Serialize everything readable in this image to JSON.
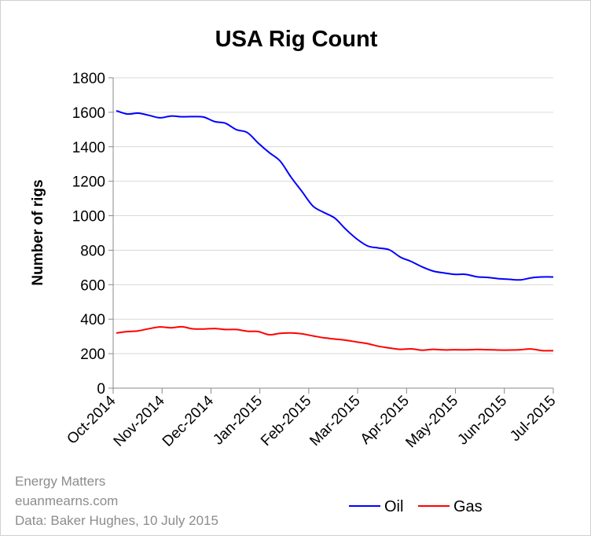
{
  "chart_data": {
    "type": "line",
    "title": "USA Rig Count",
    "xlabel": "",
    "ylabel": "Number of rigs",
    "ylim": [
      0,
      1800
    ],
    "yticks": [
      0,
      200,
      400,
      600,
      800,
      1000,
      1200,
      1400,
      1600,
      1800
    ],
    "xticks": [
      "Oct-2014",
      "Nov-2014",
      "Dec-2014",
      "Jan-2015",
      "Feb-2015",
      "Mar-2015",
      "Apr-2015",
      "May-2015",
      "Jun-2015",
      "Jul-2015"
    ],
    "grid": "horizontal",
    "legend": "bottom-right",
    "series": [
      {
        "name": "Oil",
        "color": "#0000ff",
        "x": [
          "2014-10-03",
          "2014-10-10",
          "2014-10-17",
          "2014-10-24",
          "2014-10-31",
          "2014-11-07",
          "2014-11-14",
          "2014-11-21",
          "2014-11-28",
          "2014-12-05",
          "2014-12-12",
          "2014-12-19",
          "2014-12-26",
          "2015-01-02",
          "2015-01-09",
          "2015-01-16",
          "2015-01-23",
          "2015-01-30",
          "2015-02-06",
          "2015-02-13",
          "2015-02-20",
          "2015-02-27",
          "2015-03-06",
          "2015-03-13",
          "2015-03-20",
          "2015-03-27",
          "2015-04-03",
          "2015-04-10",
          "2015-04-17",
          "2015-04-24",
          "2015-05-01",
          "2015-05-08",
          "2015-05-15",
          "2015-05-22",
          "2015-05-29",
          "2015-06-05",
          "2015-06-12",
          "2015-06-19",
          "2015-06-26",
          "2015-07-03",
          "2015-07-10"
        ],
        "values": [
          1609,
          1590,
          1595,
          1582,
          1568,
          1578,
          1574,
          1575,
          1572,
          1546,
          1536,
          1499,
          1482,
          1421,
          1366,
          1317,
          1223,
          1140,
          1056,
          1019,
          986,
          922,
          866,
          825,
          813,
          802,
          760,
          734,
          703,
          679,
          668,
          660,
          660,
          646,
          642,
          635,
          631,
          628,
          640,
          645,
          645
        ]
      },
      {
        "name": "Gas",
        "color": "#ff0000",
        "x": [
          "2014-10-03",
          "2014-10-10",
          "2014-10-17",
          "2014-10-24",
          "2014-10-31",
          "2014-11-07",
          "2014-11-14",
          "2014-11-21",
          "2014-11-28",
          "2014-12-05",
          "2014-12-12",
          "2014-12-19",
          "2014-12-26",
          "2015-01-02",
          "2015-01-09",
          "2015-01-16",
          "2015-01-23",
          "2015-01-30",
          "2015-02-06",
          "2015-02-13",
          "2015-02-20",
          "2015-02-27",
          "2015-03-06",
          "2015-03-13",
          "2015-03-20",
          "2015-03-27",
          "2015-04-03",
          "2015-04-10",
          "2015-04-17",
          "2015-04-24",
          "2015-05-01",
          "2015-05-08",
          "2015-05-15",
          "2015-05-22",
          "2015-05-29",
          "2015-06-05",
          "2015-06-12",
          "2015-06-19",
          "2015-06-26",
          "2015-07-03",
          "2015-07-10"
        ],
        "values": [
          320,
          328,
          332,
          345,
          355,
          350,
          356,
          344,
          343,
          346,
          340,
          340,
          330,
          328,
          310,
          318,
          320,
          315,
          303,
          292,
          285,
          278,
          268,
          258,
          243,
          233,
          225,
          228,
          220,
          225,
          222,
          223,
          222,
          224,
          223,
          221,
          221,
          223,
          227,
          218,
          217
        ]
      }
    ]
  },
  "source": {
    "line1": "Energy Matters",
    "line2": "euanmearns.com",
    "line3": "Data: Baker Hughes, 10 July  2015"
  }
}
